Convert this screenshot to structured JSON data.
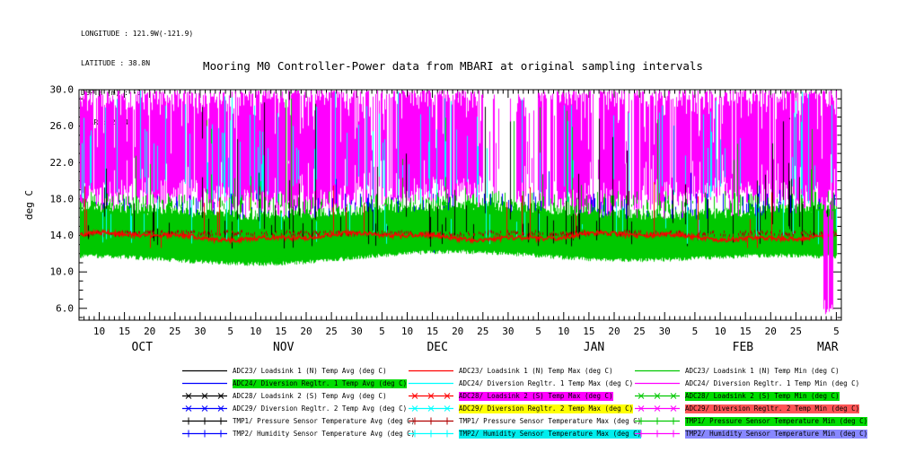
{
  "header": {
    "lines": [
      "LONGITUDE : 121.9W(-121.9)",
      "LATITUDE : 38.8N",
      "DEPTH (m) : -1",
      "YEAR : 2004"
    ]
  },
  "title": "Mooring M0 Controller-Power data from MBARI at original sampling intervals",
  "chart_data": {
    "type": "line",
    "title": "Mooring M0 Controller-Power data from MBARI at original sampling intervals",
    "ylabel": "deg C",
    "xlabel": "",
    "ylim": [
      4.7,
      30.0
    ],
    "yticks": [
      30.0,
      26.0,
      22.0,
      18.0,
      14.0,
      10.0,
      6.0
    ],
    "ytick_labels": [
      "30.0",
      "26.0",
      "22.0",
      "18.0",
      "14.0",
      "10.0",
      "6.0"
    ],
    "grid": false,
    "legend_position": "below",
    "x_axis": {
      "start_date": "2004-10-06",
      "end_date": "2005-03-06",
      "days_total": 151,
      "major_ticks": [
        {
          "label": "10",
          "day": 4
        },
        {
          "label": "15",
          "day": 9
        },
        {
          "label": "20",
          "day": 14
        },
        {
          "label": "25",
          "day": 19
        },
        {
          "label": "30",
          "day": 24
        },
        {
          "label": "5",
          "day": 30
        },
        {
          "label": "10",
          "day": 35
        },
        {
          "label": "15",
          "day": 40
        },
        {
          "label": "20",
          "day": 45
        },
        {
          "label": "25",
          "day": 50
        },
        {
          "label": "30",
          "day": 55
        },
        {
          "label": "5",
          "day": 60
        },
        {
          "label": "10",
          "day": 65
        },
        {
          "label": "15",
          "day": 70
        },
        {
          "label": "20",
          "day": 75
        },
        {
          "label": "25",
          "day": 80
        },
        {
          "label": "30",
          "day": 85
        },
        {
          "label": "5",
          "day": 91
        },
        {
          "label": "10",
          "day": 96
        },
        {
          "label": "15",
          "day": 101
        },
        {
          "label": "20",
          "day": 106
        },
        {
          "label": "25",
          "day": 111
        },
        {
          "label": "30",
          "day": 116
        },
        {
          "label": "5",
          "day": 122
        },
        {
          "label": "10",
          "day": 127
        },
        {
          "label": "15",
          "day": 132
        },
        {
          "label": "20",
          "day": 137
        },
        {
          "label": "25",
          "day": 142
        },
        {
          "label": "5",
          "day": 150
        }
      ],
      "month_labels": [
        {
          "label": "OCT",
          "day": 12.5
        },
        {
          "label": "NOV",
          "day": 40.5
        },
        {
          "label": "DEC",
          "day": 71
        },
        {
          "label": "JAN",
          "day": 102
        },
        {
          "label": "FEB",
          "day": 131.5
        },
        {
          "label": "MAR",
          "day": 148.3
        }
      ]
    },
    "series": [
      {
        "label": "ADC23/ Loadsink 1 (N) Temp Avg (deg C)",
        "color": "#000000",
        "marker": "none",
        "highlight": null,
        "approx_range_degC": [
          12.9,
          16.2
        ]
      },
      {
        "label": "ADC23/ Loadsink 1 (N) Temp Max (deg C)",
        "color": "#ff0000",
        "marker": "none",
        "highlight": null,
        "approx_range_degC": [
          13.2,
          19.0
        ]
      },
      {
        "label": "ADC23/ Loadsink 1 (N) Temp Min (deg C)",
        "color": "#00c800",
        "marker": "none",
        "highlight": null,
        "approx_range_degC": [
          10.8,
          17.2
        ]
      },
      {
        "label": "ADC24/ Diversion Regltr. 1 Temp Avg (deg C)",
        "color": "#0000ff",
        "marker": "none",
        "highlight": "#00dd00",
        "approx_range_degC": [
          12.0,
          18.5
        ]
      },
      {
        "label": "ADC24/ Diversion Regltr. 1 Temp Max (deg C)",
        "color": "#00ffff",
        "marker": "none",
        "highlight": null,
        "approx_range_degC": [
          17.5,
          30.0
        ]
      },
      {
        "label": "ADC24/ Diversion Regltr. 1 Temp Min (deg C)",
        "color": "#ff00ff",
        "marker": "none",
        "highlight": null,
        "approx_range_degC": [
          16.8,
          30.0
        ]
      },
      {
        "label": "ADC28/ Loadsink 2 (S) Temp Avg (deg C)",
        "color": "#000000",
        "marker": "x",
        "highlight": null,
        "approx_range_degC": [
          13.0,
          16.0
        ]
      },
      {
        "label": "ADC28/ Loadsink 2 (S) Temp Max (deg C)",
        "color": "#ff0000",
        "marker": "x",
        "highlight": "#ff00ff",
        "approx_range_degC": [
          13.2,
          19.0
        ]
      },
      {
        "label": "ADC28/ Loadsink 2 (S) Temp Min (deg C)",
        "color": "#00c800",
        "marker": "x",
        "highlight": "#00dd00",
        "approx_range_degC": [
          10.8,
          17.0
        ]
      },
      {
        "label": "ADC29/ Diversion Regltr. 2 Temp Avg (deg C)",
        "color": "#0000ff",
        "marker": "x",
        "highlight": null,
        "approx_range_degC": [
          12.0,
          18.5
        ]
      },
      {
        "label": "ADC29/ Diversion Regltr. 2 Temp Max (deg C)",
        "color": "#00ffff",
        "marker": "x",
        "highlight": "#ffff00",
        "approx_range_degC": [
          17.5,
          30.0
        ]
      },
      {
        "label": "ADC29/ Diversion Regltr. 2 Temp Min (deg C)",
        "color": "#ff00ff",
        "marker": "x",
        "highlight": "#ff5555",
        "approx_range_degC": [
          5.2,
          30.0
        ]
      },
      {
        "label": "TMP1/ Pressure Sensor Temperature Avg (deg C)",
        "color": "#000000",
        "marker": "plus",
        "highlight": null,
        "approx_range_degC": [
          13.0,
          16.0
        ]
      },
      {
        "label": "TMP1/ Pressure Sensor Temperature Max (deg C)",
        "color": "#b00000",
        "marker": "plus",
        "highlight": null,
        "approx_range_degC": [
          13.6,
          14.7
        ]
      },
      {
        "label": "TMP1/ Pressure Sensor Temperature Min (deg C)",
        "color": "#00c800",
        "marker": "plus",
        "highlight": "#00dd00",
        "approx_range_degC": [
          11.0,
          16.5
        ]
      },
      {
        "label": "TMP2/ Humidity Sensor Temperature Avg (deg C)",
        "color": "#0000ff",
        "marker": "plus",
        "highlight": null,
        "approx_range_degC": [
          12.0,
          18.0
        ]
      },
      {
        "label": "TMP2/ Humidity Sensor Temperature Max (deg C)",
        "color": "#00ffff",
        "marker": "plus",
        "highlight": "#00eeee",
        "approx_range_degC": [
          17.5,
          30.0
        ]
      },
      {
        "label": "TMP2/ Humidity Sensor Temperature Min (deg C)",
        "color": "#ff00ff",
        "marker": "plus",
        "highlight": "#8888ff",
        "approx_range_degC": [
          16.5,
          30.0
        ]
      }
    ],
    "data_gaps_days": [
      [
        80,
        86.5
      ],
      [
        88.5,
        91
      ],
      [
        93,
        94.5
      ],
      [
        101.5,
        103
      ],
      [
        108.5,
        110
      ],
      [
        58.5,
        60
      ],
      [
        40.5,
        41.5
      ],
      [
        117,
        118.2
      ]
    ],
    "render": {
      "seed": 20041006,
      "end_day": 150.2,
      "colors": {
        "magenta": "#ff00ff",
        "green": "#00c800",
        "red": "#ff0000",
        "cyan": "#00ffff",
        "blue": "#0000ff",
        "black": "#000000",
        "yellow": "#e8e800",
        "darkred": "#b00000"
      },
      "gap_windows": [
        [
          80,
          86.5,
          0.93
        ],
        [
          88.5,
          91,
          0.85
        ],
        [
          93,
          94.5,
          0.6
        ],
        [
          101.5,
          103,
          0.7
        ],
        [
          108.5,
          110,
          0.55
        ],
        [
          58.5,
          60,
          0.45
        ],
        [
          40.5,
          41.5,
          0.35
        ],
        [
          117,
          118.2,
          0.45
        ]
      ],
      "burst": {
        "start": 147.6,
        "end": 149.7,
        "low": 5.2,
        "high": 19
      }
    }
  }
}
